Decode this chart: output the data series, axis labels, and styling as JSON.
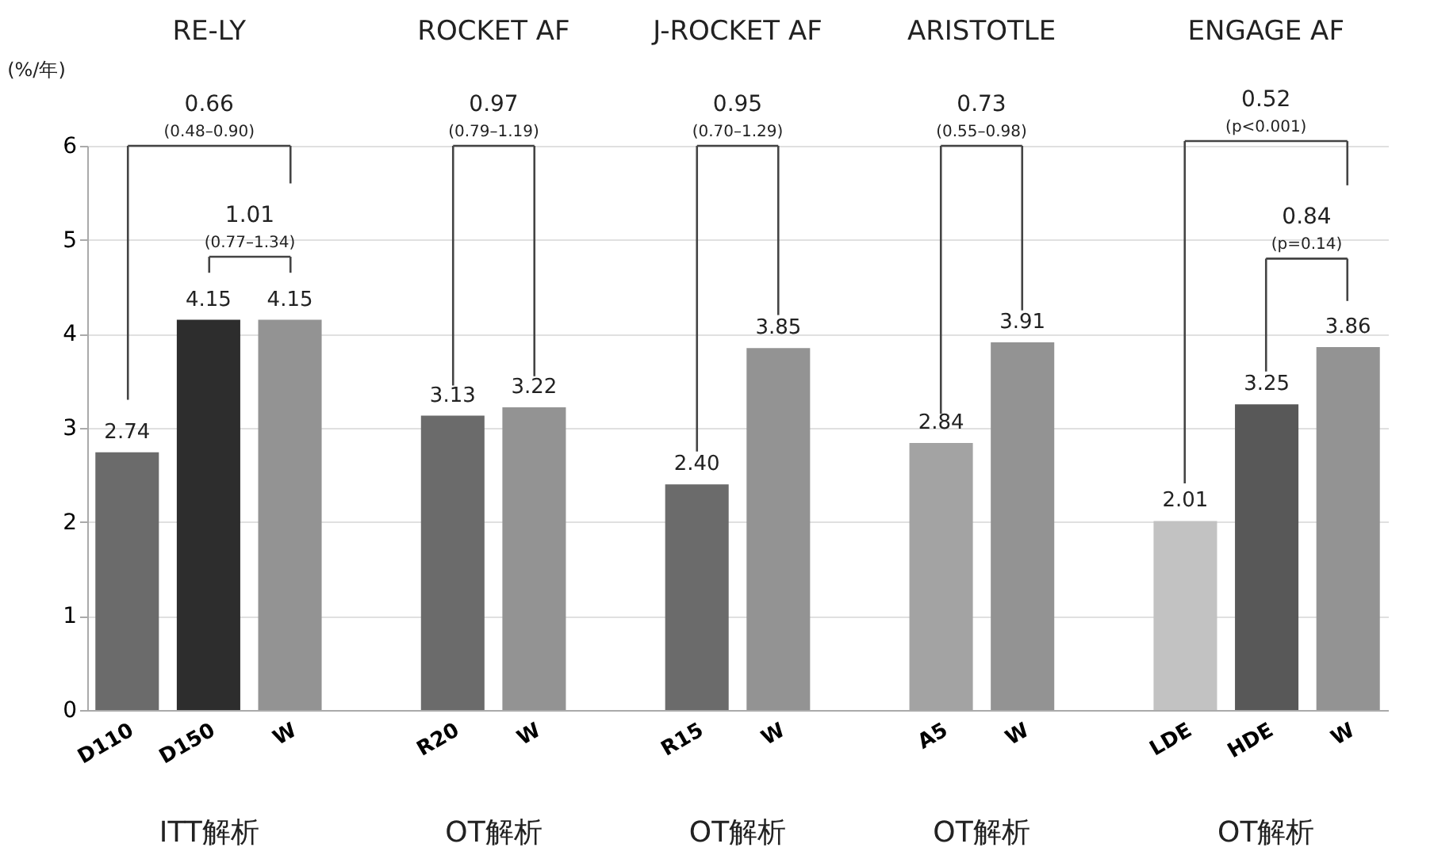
{
  "chart_data": {
    "type": "bar",
    "ylabel": "(%/年)",
    "categories": [
      "D110",
      "D150",
      "W",
      null,
      "R20",
      "W",
      null,
      "R15",
      "W",
      null,
      "A5",
      "W",
      null,
      "LDE",
      "HDE",
      "W"
    ],
    "values": [
      2.74,
      4.15,
      4.15,
      null,
      3.13,
      3.22,
      null,
      2.4,
      3.85,
      null,
      2.84,
      3.91,
      null,
      2.01,
      3.25,
      3.86
    ],
    "value_labels": [
      "2.74",
      "4.15",
      "4.15",
      null,
      "3.13",
      "3.22",
      null,
      "2.40",
      "3.85",
      null,
      "2.84",
      "3.91",
      null,
      "2.01",
      "3.25",
      "3.86"
    ],
    "colors": [
      "#6b6b6b",
      "#2d2d2d",
      "#939393",
      null,
      "#6b6b6b",
      "#939393",
      null,
      "#6b6b6b",
      "#939393",
      null,
      "#a3a3a3",
      "#939393",
      null,
      "#c2c2c2",
      "#585858",
      "#939393"
    ],
    "ylim": [
      0,
      6
    ],
    "yticks": [
      0,
      1,
      2,
      3,
      4,
      5,
      6
    ],
    "grid": "y",
    "annotations": [
      "RE-LY",
      "ROCKET AF",
      "J-ROCKET AF",
      "ARISTOTLE",
      "ENGAGE AF",
      "0.66",
      "(0.48–0.90)",
      "1.01",
      "(0.77–1.34)",
      "0.97",
      "(0.79–1.19)",
      "0.95",
      "(0.70–1.29)",
      "0.73",
      "(0.55–0.98)",
      "0.52",
      "(p<0.001)",
      "0.84",
      "(p=0.14)",
      "ITT解析",
      "OT解析",
      "OT解析",
      "OT解析",
      "OT解析"
    ]
  }
}
